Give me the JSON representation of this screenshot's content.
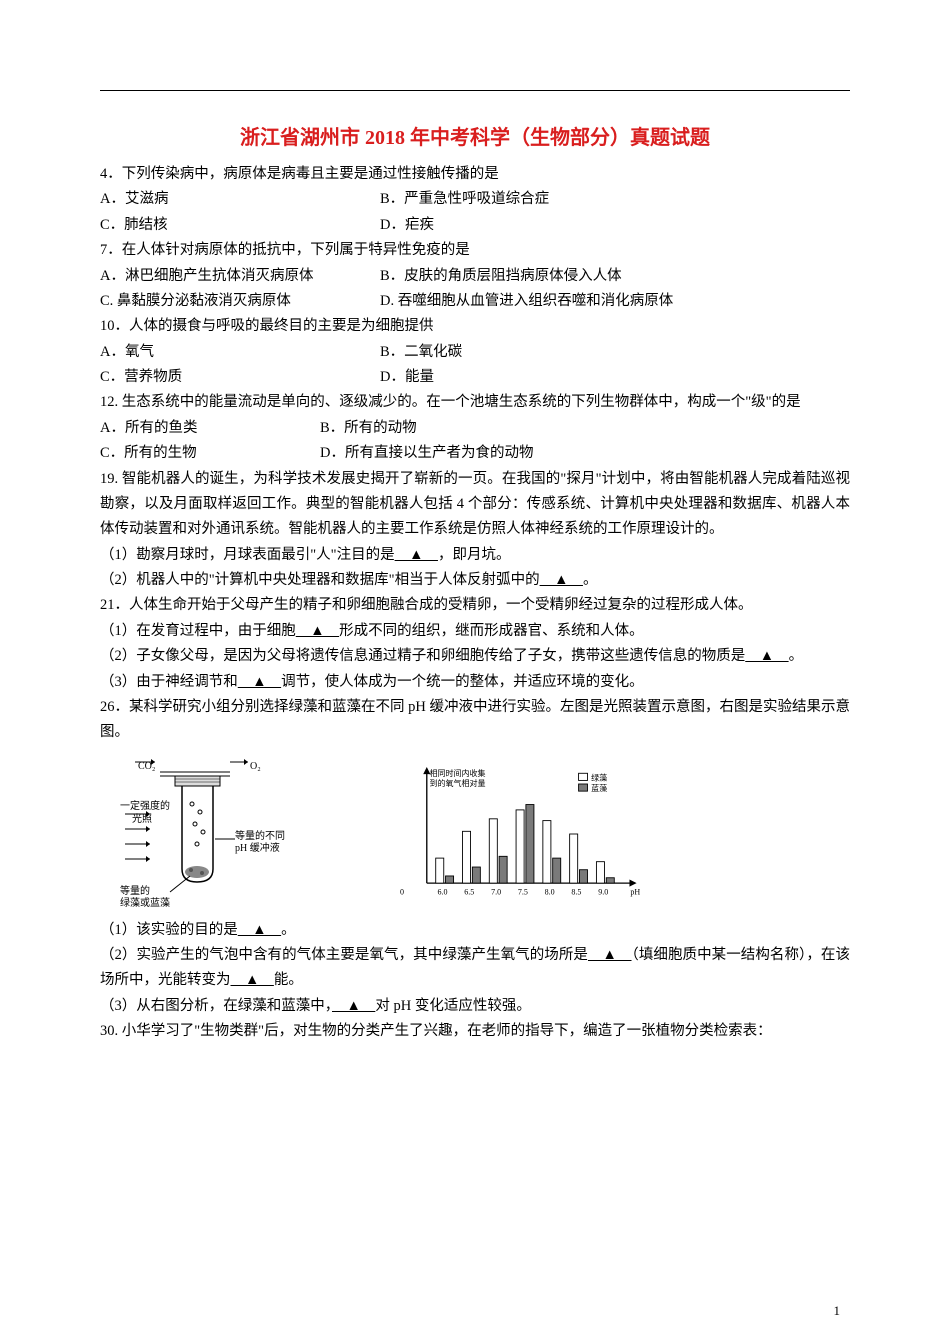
{
  "title": "浙江省湖州市 2018 年中考科学（生物部分）真题试题",
  "q4": {
    "stem": "4．下列传染病中，病原体是病毒且主要是通过性接触传播的是",
    "a": "A．艾滋病",
    "b": "B．严重急性呼吸道综合症",
    "c": "C．肺结核",
    "d": "D．疟疾"
  },
  "q7": {
    "stem": "7．在人体针对病原体的抵抗中，下列属于特异性免疫的是",
    "a": "A．淋巴细胞产生抗体消灭病原体",
    "b": "B．皮肤的角质层阻挡病原体侵入人体",
    "c": "C. 鼻黏膜分泌黏液消灭病原体",
    "d": "D. 吞噬细胞从血管进入组织吞噬和消化病原体"
  },
  "q10": {
    "stem": "10．人体的摄食与呼吸的最终目的主要是为细胞提供",
    "a": "A．氧气",
    "b": "B．二氧化碳",
    "c": "C．营养物质",
    "d": "D．能量"
  },
  "q12": {
    "stem": "12. 生态系统中的能量流动是单向的、逐级减少的。在一个池塘生态系统的下列生物群体中，构成一个\"级\"的是",
    "a": "A．所有的鱼类",
    "b": "B．所有的动物",
    "c": "C．所有的生物",
    "d": "D．所有直接以生产者为食的动物"
  },
  "q19": {
    "stem": "19. 智能机器人的诞生，为科学技术发展史揭开了崭新的一页。在我国的\"探月\"计划中，将由智能机器人完成着陆巡视勘察，以及月面取样返回工作。典型的智能机器人包括 4 个部分：传感系统、计算机中央处理器和数据库、机器人本体传动装置和对外通讯系统。智能机器人的主要工作系统是仿照人体神经系统的工作原理设计的。",
    "p1a": "（1）勘察月球时，月球表面最引\"人\"注目的是",
    "p1b": "，即月坑。",
    "p2a": "（2）机器人中的\"计算机中央处理器和数据库\"相当于人体反射弧中的",
    "p2b": "。"
  },
  "q21": {
    "stem": "21．人体生命开始于父母产生的精子和卵细胞融合成的受精卵，一个受精卵经过复杂的过程形成人体。",
    "p1a": "（1）在发育过程中，由于细胞",
    "p1b": "形成不同的组织，继而形成器官、系统和人体。",
    "p2a": "（2）子女像父母，是因为父母将遗传信息通过精子和卵细胞传给了子女，携带这些遗传信息的物质是",
    "p2b": "。",
    "p3a": "（3）由于神经调节和",
    "p3b": "调节，使人体成为一个统一的整体，并适应环境的变化。"
  },
  "q26": {
    "stem": "26．某科学研究小组分别选择绿藻和蓝藻在不同 pH 缓冲液中进行实验。左图是光照装置示意图，右图是实验结果示意图。",
    "p1a": "（1）该实验的目的是",
    "p1b": "。",
    "p2a": "（2）实验产生的气泡中含有的气体主要是氧气，其中绿藻产生氧气的场所是",
    "p2b": "（填细胞质中某一结构名称），在该场所中，光能转变为",
    "p2c": "能。",
    "p3a": "（3）从右图分析，在绿藻和蓝藻中，",
    "p3b": "对 pH 变化适应性较强。"
  },
  "q30": {
    "stem": "30. 小华学习了\"生物类群\"后，对生物的分类产生了兴趣，在老师的指导下，编造了一张植物分类检索表："
  },
  "blank": "　▲　",
  "pagenum": "1",
  "fig_left": {
    "label_co2": "CO₂",
    "label_o2": "O₂",
    "label_light": "一定强度的光照",
    "label_algae": "等量的绿藻或蓝藻",
    "label_buffer": "等量的不同pH 缓冲液"
  },
  "fig_right": {
    "ylabel1": "相同时间内收集",
    "ylabel2": "到的氧气相对量",
    "legend_green": "绿藻",
    "legend_blue": "蓝藻",
    "xlabels": [
      "6.0",
      "6.5",
      "7.0",
      "7.5",
      "8.0",
      "8.5",
      "9.0"
    ],
    "xunit": "pH",
    "green_values": [
      28,
      58,
      72,
      82,
      70,
      55,
      24
    ],
    "blue_values": [
      8,
      18,
      30,
      88,
      28,
      15,
      6
    ],
    "colors": {
      "green_fill": "#ffffff",
      "blue_fill": "#7a7a7a",
      "axis": "#000000"
    }
  }
}
